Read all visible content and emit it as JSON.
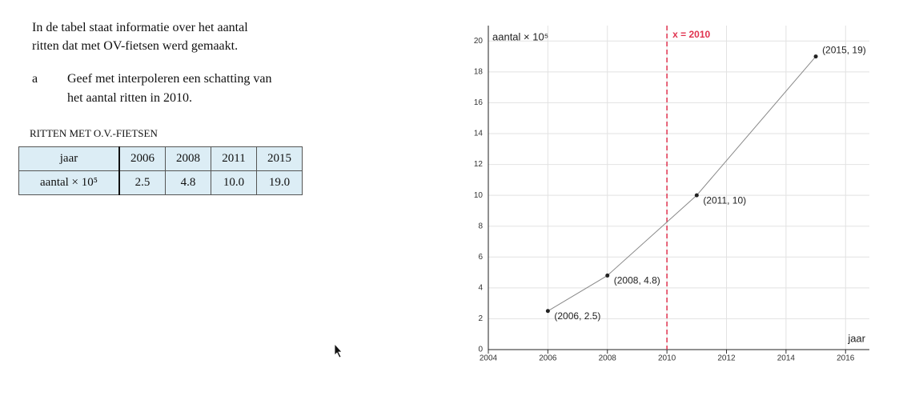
{
  "text": {
    "intro": [
      "In de tabel staat informatie over het aantal",
      "ritten dat met OV-fietsen werd gemaakt."
    ],
    "question_label": "a",
    "question": [
      "Geef met interpoleren een schatting van",
      "het aantal ritten in 2010."
    ]
  },
  "table": {
    "caption": "RITTEN MET O.V.-FIETSEN",
    "header": [
      "jaar",
      "2006",
      "2008",
      "2011",
      "2015"
    ],
    "row": [
      "aantal × 10⁵",
      "2.5",
      "4.8",
      "10.0",
      "19.0"
    ]
  },
  "chart_data": {
    "type": "line",
    "x": [
      2006,
      2008,
      2011,
      2015
    ],
    "values": [
      2.5,
      4.8,
      10,
      19
    ],
    "value_labels": [
      "(2006, 2.5)",
      "(2008, 4.8)",
      "(2011, 10)",
      "(2015, 19)"
    ],
    "xlim": [
      2004,
      2016.8
    ],
    "ylim": [
      0,
      21
    ],
    "xticks": [
      2004,
      2006,
      2008,
      2010,
      2012,
      2014,
      2016
    ],
    "yticks": [
      0,
      2,
      4,
      6,
      8,
      10,
      12,
      14,
      16,
      18,
      20
    ],
    "x_label": "jaar",
    "y_label": "aantal × 10⁵",
    "grid": true,
    "color": "#888888",
    "vline": 2010,
    "vline_label": "x = 2010",
    "vline_color": "#e0334f"
  }
}
